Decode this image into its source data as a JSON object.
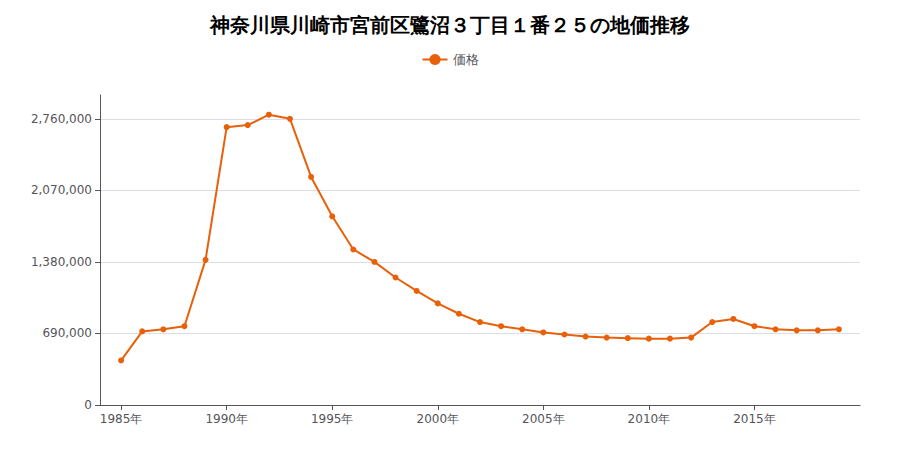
{
  "chart_data": {
    "type": "line",
    "title": "神奈川県川崎市宮前区鷺沼３丁目１番２５の地価推移",
    "x": [
      1985,
      1986,
      1987,
      1988,
      1989,
      1990,
      1991,
      1992,
      1993,
      1994,
      1995,
      1996,
      1997,
      1998,
      1999,
      2000,
      2001,
      2002,
      2003,
      2004,
      2005,
      2006,
      2007,
      2008,
      2009,
      2010,
      2011,
      2012,
      2013,
      2014,
      2015,
      2016,
      2017,
      2018,
      2019
    ],
    "series": [
      {
        "name": "価格",
        "color": "#E8600A",
        "marker": "circle",
        "values": [
          430000,
          710000,
          730000,
          760000,
          1400000,
          2680000,
          2700000,
          2800000,
          2760000,
          2200000,
          1820000,
          1500000,
          1380000,
          1230000,
          1100000,
          980000,
          880000,
          800000,
          760000,
          730000,
          700000,
          680000,
          660000,
          650000,
          645000,
          640000,
          640000,
          650000,
          800000,
          830000,
          760000,
          730000,
          720000,
          720000,
          730000
        ]
      }
    ],
    "xlim": [
      1984.0,
      2020.0
    ],
    "xticks": [
      {
        "value": 1985,
        "label": "1985年"
      },
      {
        "value": 1990,
        "label": "1990年"
      },
      {
        "value": 1995,
        "label": "1995年"
      },
      {
        "value": 2000,
        "label": "2000年"
      },
      {
        "value": 2005,
        "label": "2005年"
      },
      {
        "value": 2010,
        "label": "2010年"
      },
      {
        "value": 2015,
        "label": "2015年"
      }
    ],
    "ylim": [
      0,
      2990000
    ],
    "yticks": [
      0,
      {
        "value": 690000,
        "label": "690,000"
      },
      {
        "value": 1380000,
        "label": "1,380,000"
      },
      {
        "value": 2070000,
        "label": "2,070,000"
      },
      {
        "value": 2760000,
        "label": "2,760,000"
      }
    ],
    "grid": true
  }
}
